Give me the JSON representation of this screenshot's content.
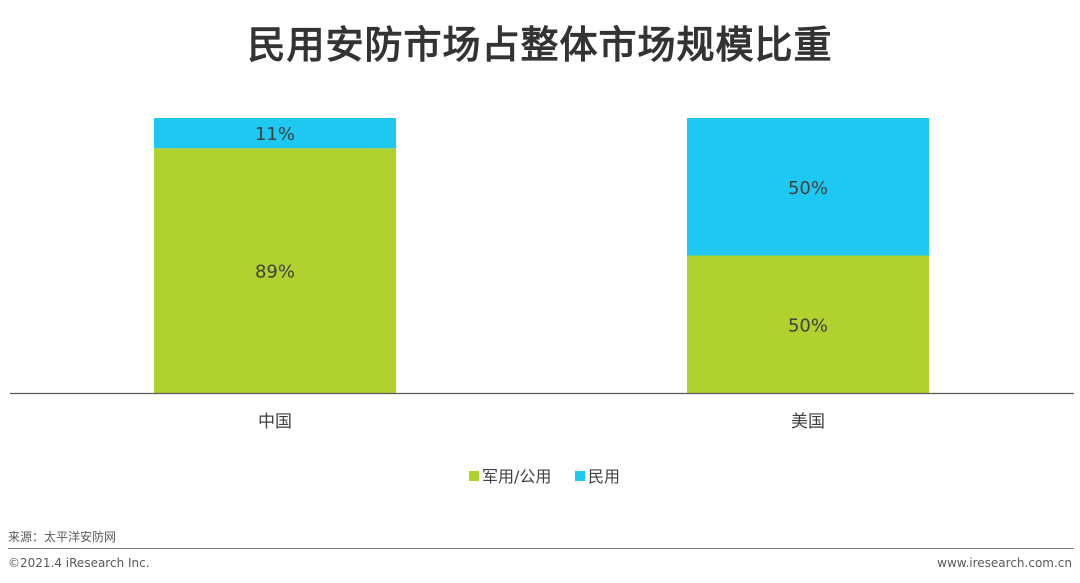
{
  "page": {
    "title": "民用安防市场占整体市场规模比重",
    "source": "来源：太平洋安防网",
    "copyright": "©2021.4 iResearch Inc.",
    "site": "www.iresearch.com.cn"
  },
  "chart_data": {
    "type": "bar",
    "stacked": true,
    "categories": [
      "中国",
      "美国"
    ],
    "series": [
      {
        "name": "军用/公用",
        "values": [
          89,
          50
        ],
        "labels": [
          "89%",
          "50%"
        ],
        "color": "#b0d12e"
      },
      {
        "name": "民用",
        "values": [
          11,
          50
        ],
        "labels": [
          "11%",
          "50%"
        ],
        "color": "#1ec8f0"
      }
    ],
    "ylim": [
      0,
      100
    ],
    "legend": "bottom-center",
    "grid": false
  }
}
